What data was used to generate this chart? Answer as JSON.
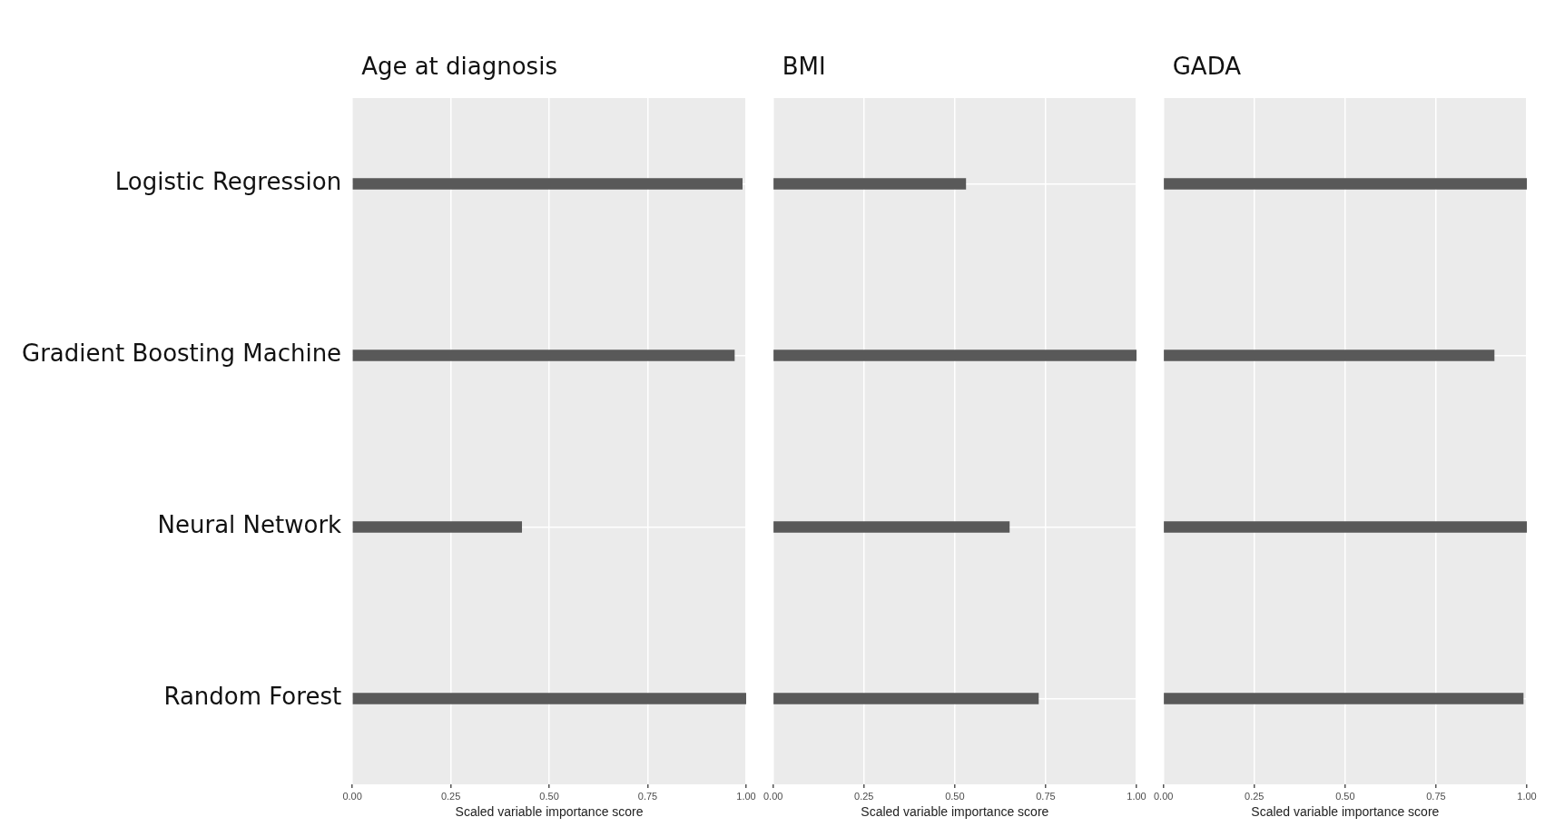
{
  "chart_data": [
    {
      "type": "bar",
      "orientation": "horizontal",
      "title": "Age at diagnosis",
      "xlabel": "Scaled variable importance score",
      "categories": [
        "Logistic Regression",
        "Gradient Boosting Machine",
        "Neural Network",
        "Random Forest"
      ],
      "values": [
        0.99,
        0.97,
        0.43,
        1.0
      ],
      "color": "#595959",
      "xlim": [
        0,
        1
      ],
      "xticks": [
        {
          "value": 0,
          "label": "0.00"
        },
        {
          "value": 0.25,
          "label": "0.25"
        },
        {
          "value": 0.5,
          "label": "0.50"
        },
        {
          "value": 0.75,
          "label": "0.75"
        },
        {
          "value": 1,
          "label": "1.00"
        }
      ],
      "grid": true
    },
    {
      "type": "bar",
      "orientation": "horizontal",
      "title": "BMI",
      "xlabel": "Scaled variable importance score",
      "categories": [
        null,
        null,
        null,
        null
      ],
      "values": [
        0.53,
        1.0,
        0.65,
        0.73
      ],
      "color": "#595959",
      "xlim": [
        0,
        1
      ],
      "xticks": [
        {
          "value": 0,
          "label": "0.00"
        },
        {
          "value": 0.25,
          "label": "0.25"
        },
        {
          "value": 0.5,
          "label": "0.50"
        },
        {
          "value": 0.75,
          "label": "0.75"
        },
        {
          "value": 1,
          "label": "1.00"
        }
      ],
      "grid": true,
      "tick_labels": "x"
    },
    {
      "type": "bar",
      "orientation": "horizontal",
      "title": "GADA",
      "xlabel": "Scaled variable importance score",
      "categories": [
        null,
        null,
        null,
        null
      ],
      "values": [
        1.0,
        0.91,
        1.0,
        0.99
      ],
      "color": "#595959",
      "xlim": [
        0,
        1
      ],
      "xticks": [
        {
          "value": 0,
          "label": "0.00"
        },
        {
          "value": 0.25,
          "label": "0.25"
        },
        {
          "value": 0.5,
          "label": "0.50"
        },
        {
          "value": 0.75,
          "label": "0.75"
        },
        {
          "value": 1,
          "label": "1.00"
        }
      ],
      "grid": true,
      "tick_labels": "x"
    }
  ]
}
